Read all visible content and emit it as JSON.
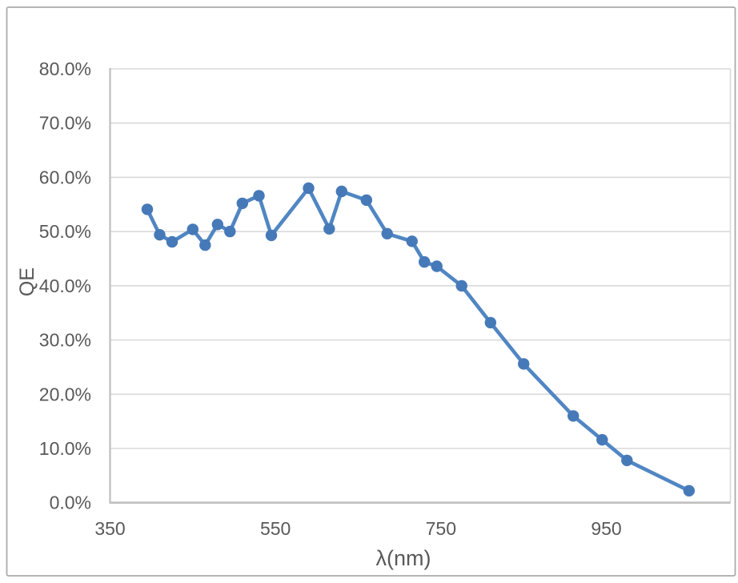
{
  "chart_data": {
    "type": "line",
    "title": "",
    "xlabel": "λ(nm)",
    "ylabel": "QE",
    "legend": "none",
    "grid": "horizontal",
    "xlim": [
      350,
      1100
    ],
    "ylim_percent": [
      0,
      80
    ],
    "x_ticks": [
      {
        "v": 350,
        "label": "350"
      },
      {
        "v": 550,
        "label": "550"
      },
      {
        "v": 750,
        "label": "750"
      },
      {
        "v": 950,
        "label": "950"
      }
    ],
    "y_ticks": [
      {
        "v": 0,
        "label": "0.0%"
      },
      {
        "v": 10,
        "label": "10.0%"
      },
      {
        "v": 20,
        "label": "20.0%"
      },
      {
        "v": 30,
        "label": "30.0%"
      },
      {
        "v": 40,
        "label": "40.0%"
      },
      {
        "v": 50,
        "label": "50.0%"
      },
      {
        "v": 60,
        "label": "60.0%"
      },
      {
        "v": 70,
        "label": "70.0%"
      },
      {
        "v": 80,
        "label": "80.0%"
      }
    ],
    "series": [
      {
        "name": "QE",
        "x": [
          395,
          410,
          425,
          450,
          465,
          480,
          495,
          510,
          530,
          545,
          590,
          615,
          630,
          660,
          685,
          715,
          730,
          745,
          775,
          810,
          850,
          910,
          945,
          975,
          1050
        ],
        "y_percent": [
          54.1,
          49.4,
          48.1,
          50.4,
          47.5,
          51.3,
          50.0,
          55.2,
          56.6,
          49.3,
          58.0,
          50.5,
          57.4,
          55.8,
          49.6,
          48.2,
          44.4,
          43.6,
          40.0,
          33.2,
          25.6,
          16.0,
          11.6,
          7.8,
          2.2
        ]
      }
    ],
    "colors": {
      "series_line": "#5086C3",
      "series_marker": "#4679B8",
      "gridline": "#D9D9D9",
      "axis_line": "#BFBFBF",
      "tick_text": "#595959",
      "frame_border": "#ABABAB",
      "background": "#FFFFFF"
    }
  }
}
